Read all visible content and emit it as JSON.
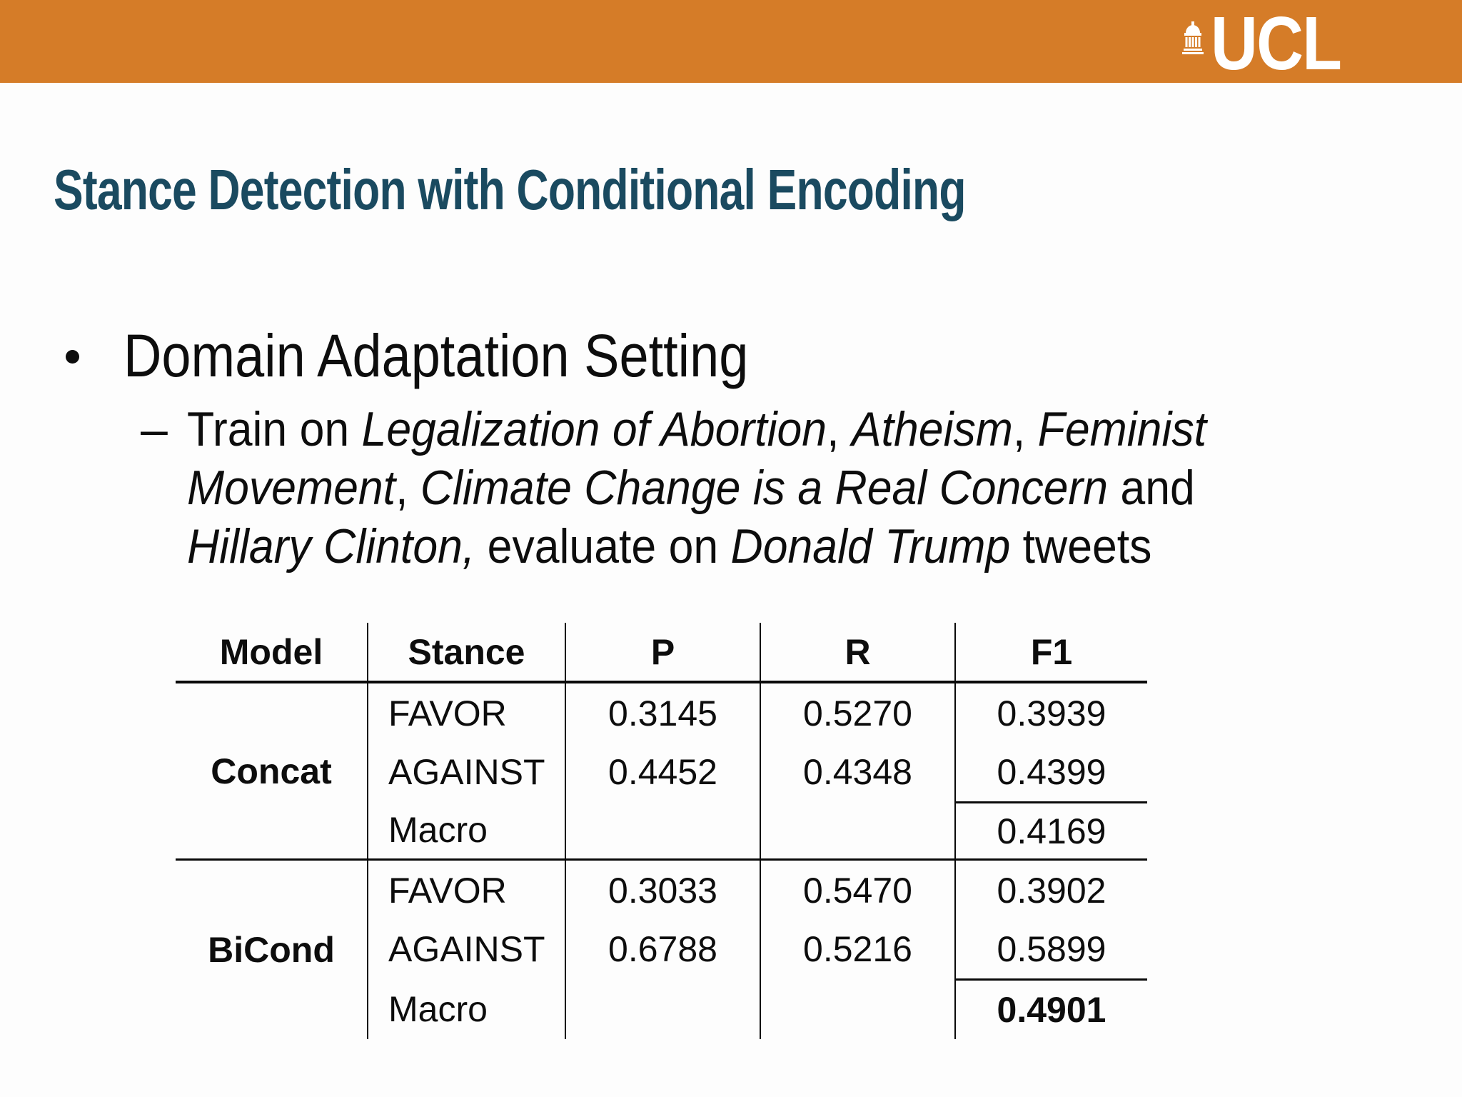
{
  "banner": {
    "logo_text": "UCL"
  },
  "title": "Stance Detection with Conditional Encoding",
  "bullets": {
    "main": "Domain Adaptation Setting",
    "dash": "–",
    "sub_lines": [
      [
        {
          "t": "Train on ",
          "i": false
        },
        {
          "t": "Legalization of Abortion",
          "i": true
        },
        {
          "t": ", ",
          "i": false
        },
        {
          "t": "Atheism",
          "i": true
        },
        {
          "t": ", ",
          "i": false
        },
        {
          "t": "Feminist",
          "i": true
        }
      ],
      [
        {
          "t": "Movement",
          "i": true
        },
        {
          "t": ", ",
          "i": false
        },
        {
          "t": "Climate Change is a Real Concern",
          "i": true
        },
        {
          "t": " and",
          "i": false
        }
      ],
      [
        {
          "t": "Hillary Clinton,",
          "i": true
        },
        {
          "t": " evaluate on ",
          "i": false
        },
        {
          "t": "Donald Trump",
          "i": true
        },
        {
          "t": " tweets",
          "i": false
        }
      ]
    ]
  },
  "table": {
    "headers": {
      "model": "Model",
      "stance": "Stance",
      "p": "P",
      "r": "R",
      "f1": "F1"
    },
    "concat": {
      "model": "Concat",
      "favor": {
        "stance": "FAVOR",
        "p": "0.3145",
        "r": "0.5270",
        "f1": "0.3939"
      },
      "against": {
        "stance": "AGAINST",
        "p": "0.4452",
        "r": "0.4348",
        "f1": "0.4399"
      },
      "macro": {
        "stance": "Macro",
        "p": "",
        "r": "",
        "f1": "0.4169"
      }
    },
    "bicond": {
      "model": "BiCond",
      "favor": {
        "stance": "FAVOR",
        "p": "0.3033",
        "r": "0.5470",
        "f1": "0.3902"
      },
      "against": {
        "stance": "AGAINST",
        "p": "0.6788",
        "r": "0.5216",
        "f1": "0.5899"
      },
      "macro": {
        "stance": "Macro",
        "p": "",
        "r": "",
        "f1": "0.4901"
      }
    }
  },
  "colors": {
    "banner_orange": "#D57C28",
    "title_teal": "#1A4A60",
    "logo_white": "#FFFFFF",
    "text_black": "#0D0D0D",
    "table_rule": "#0A0A0A"
  }
}
